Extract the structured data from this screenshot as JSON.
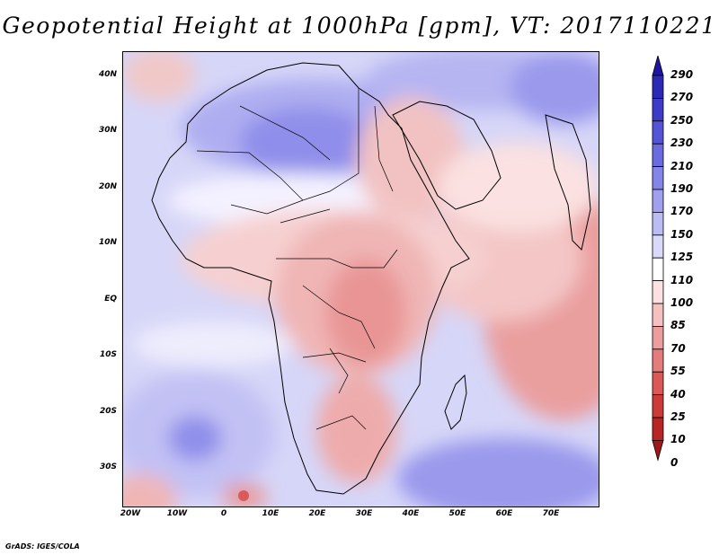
{
  "title": "Geopotential Height at 1000hPa [gpm], VT: 2017110221",
  "credit": "GrADS: IGES/COLA",
  "lat_labels": [
    "40N",
    "30N",
    "20N",
    "10N",
    "EQ",
    "10S",
    "20S",
    "30S"
  ],
  "lon_labels": [
    "20W",
    "10W",
    "0",
    "10E",
    "20E",
    "30E",
    "40E",
    "50E",
    "60E",
    "70E"
  ],
  "colorbar": {
    "levels": [
      "290",
      "270",
      "250",
      "230",
      "210",
      "190",
      "170",
      "150",
      "125",
      "110",
      "100",
      "85",
      "70",
      "55",
      "40",
      "25",
      "10",
      "0"
    ],
    "colors": [
      "#1e16a0",
      "#2c2ab4",
      "#3d3cc8",
      "#5554d6",
      "#6b6ae0",
      "#8584e9",
      "#a09ff0",
      "#bcbcf5",
      "#d9d9fa",
      "#ffffff",
      "#fbe1e1",
      "#f4c0c0",
      "#ec9e9e",
      "#e47c7c",
      "#dc5858",
      "#cc3a3a",
      "#b82525",
      "#a01818"
    ]
  }
}
